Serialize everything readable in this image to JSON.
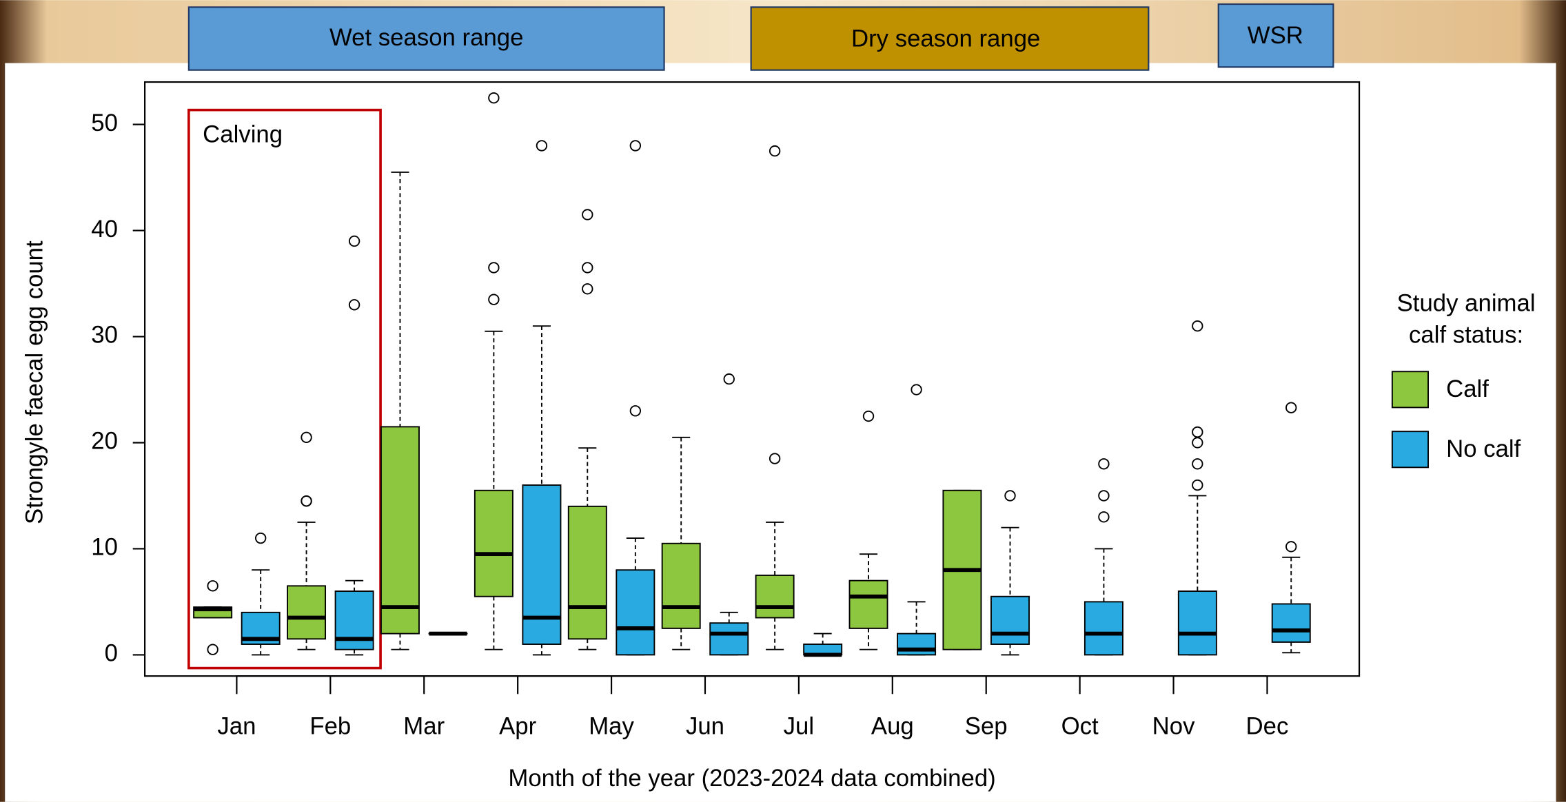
{
  "chart_data": {
    "type": "box",
    "x_label": "Month of the year (2023-2024 data combined)",
    "y_label": "Strongyle faecal egg count",
    "categories": [
      "Jan",
      "Feb",
      "Mar",
      "Apr",
      "May",
      "Jun",
      "Jul",
      "Aug",
      "Sep",
      "Oct",
      "Nov",
      "Dec"
    ],
    "ylim": [
      -2,
      54
    ],
    "yticks": [
      0,
      10,
      20,
      30,
      40,
      50
    ],
    "legend_title": [
      "Study animal",
      "calf status:"
    ],
    "legend_position": "right",
    "annotations": {
      "wet": "Wet season range",
      "dry": "Dry season range",
      "wsr": "WSR",
      "calving": "Calving"
    },
    "series": [
      {
        "name": "Calf",
        "color": "#8dc63f",
        "boxes": [
          {
            "low": 3.5,
            "q1": 3.5,
            "median": 4.3,
            "q3": 4.5,
            "high": 4.5,
            "outliers": [
              6.5,
              0.5
            ]
          },
          {
            "low": 0.5,
            "q1": 1.5,
            "median": 3.5,
            "q3": 6.5,
            "high": 12.5,
            "outliers": [
              14.5,
              14.5,
              20.5
            ]
          },
          {
            "low": 0.5,
            "q1": 2,
            "median": 4.5,
            "q3": 21.5,
            "high": 45.5,
            "outliers": []
          },
          {
            "low": 0.5,
            "q1": 5.5,
            "median": 9.5,
            "q3": 15.5,
            "high": 30.5,
            "outliers": [
              33.5,
              36.5,
              52.5
            ]
          },
          {
            "low": 0.5,
            "q1": 1.5,
            "median": 4.5,
            "q3": 14,
            "high": 19.5,
            "outliers": [
              34.5,
              36.5,
              41.5
            ]
          },
          {
            "low": 0.5,
            "q1": 2.5,
            "median": 4.5,
            "q3": 10.5,
            "high": 20.5,
            "outliers": []
          },
          {
            "low": 0.5,
            "q1": 3.5,
            "median": 4.5,
            "q3": 7.5,
            "high": 12.5,
            "outliers": [
              18.5,
              47.5
            ]
          },
          {
            "low": 0.5,
            "q1": 2.5,
            "median": 5.5,
            "q3": 7,
            "high": 9.5,
            "outliers": [
              22.5
            ]
          },
          {
            "low": 0.5,
            "q1": 0.5,
            "median": 8,
            "q3": 15.5,
            "high": 15.5,
            "outliers": []
          },
          null,
          null,
          null
        ]
      },
      {
        "name": "No calf",
        "color": "#29abe2",
        "boxes": [
          {
            "low": 0,
            "q1": 1,
            "median": 1.5,
            "q3": 4,
            "high": 8,
            "outliers": [
              11
            ]
          },
          {
            "low": 0,
            "q1": 0.5,
            "median": 1.5,
            "q3": 6,
            "high": 7,
            "outliers": [
              33,
              39
            ]
          },
          {
            "low": 2,
            "q1": 2,
            "median": 2,
            "q3": 2,
            "high": 2,
            "outliers": []
          },
          {
            "low": 0,
            "q1": 1,
            "median": 3.5,
            "q3": 16,
            "high": 31,
            "outliers": [
              48
            ]
          },
          {
            "low": 0,
            "q1": 0,
            "median": 2.5,
            "q3": 8,
            "high": 11,
            "outliers": [
              23,
              48
            ]
          },
          {
            "low": 0,
            "q1": 0,
            "median": 2,
            "q3": 3,
            "high": 4,
            "outliers": [
              26
            ]
          },
          {
            "low": 0,
            "q1": 0,
            "median": 0,
            "q3": 1,
            "high": 2,
            "outliers": []
          },
          {
            "low": 0,
            "q1": 0,
            "median": 0.5,
            "q3": 2,
            "high": 5,
            "outliers": [
              25
            ]
          },
          {
            "low": 0,
            "q1": 1,
            "median": 2,
            "q3": 5.5,
            "high": 12,
            "outliers": [
              15
            ]
          },
          {
            "low": 0,
            "q1": 0,
            "median": 2,
            "q3": 5,
            "high": 10,
            "outliers": [
              13,
              15,
              18
            ]
          },
          {
            "low": 0,
            "q1": 0,
            "median": 2,
            "q3": 6,
            "high": 15,
            "outliers": [
              16,
              18,
              20,
              21,
              31
            ]
          },
          {
            "low": 0.2,
            "q1": 1.2,
            "median": 2.3,
            "q3": 4.8,
            "high": 9.2,
            "outliers": [
              10.2,
              23.3
            ]
          }
        ]
      }
    ]
  }
}
